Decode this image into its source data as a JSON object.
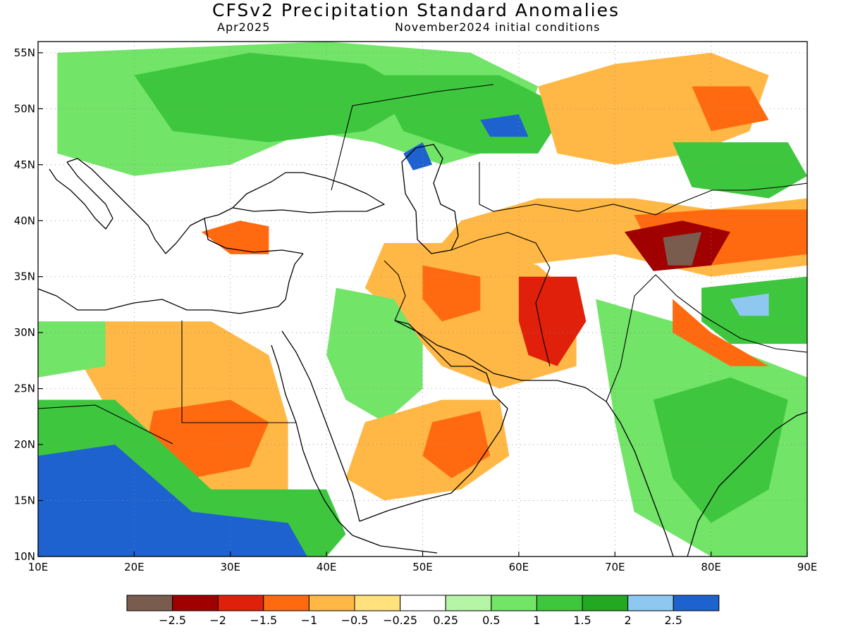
{
  "title": "CFSv2 Precipitation Standard Anomalies",
  "subtitle_left": "Apr2025",
  "subtitle_right": "November2024 initial conditions",
  "map": {
    "lon_range": [
      10,
      90
    ],
    "lat_range": [
      10,
      56
    ],
    "lon_ticks": [
      {
        "value": 10,
        "label": "10E"
      },
      {
        "value": 20,
        "label": "20E"
      },
      {
        "value": 30,
        "label": "30E"
      },
      {
        "value": 40,
        "label": "40E"
      },
      {
        "value": 50,
        "label": "50E"
      },
      {
        "value": 60,
        "label": "60E"
      },
      {
        "value": 70,
        "label": "70E"
      },
      {
        "value": 80,
        "label": "80E"
      },
      {
        "value": 90,
        "label": "90E"
      }
    ],
    "lat_ticks": [
      {
        "value": 10,
        "label": "10N"
      },
      {
        "value": 15,
        "label": "15N"
      },
      {
        "value": 20,
        "label": "20N"
      },
      {
        "value": 25,
        "label": "25N"
      },
      {
        "value": 30,
        "label": "30N"
      },
      {
        "value": 35,
        "label": "35N"
      },
      {
        "value": 40,
        "label": "40N"
      },
      {
        "value": 45,
        "label": "45N"
      },
      {
        "value": 50,
        "label": "50N"
      },
      {
        "value": 55,
        "label": "55N"
      }
    ]
  },
  "colorbar": {
    "colors": [
      "#7a5c4f",
      "#a00000",
      "#e0200a",
      "#ff6a10",
      "#ffb845",
      "#ffe27c",
      "#ffffff",
      "#b6f5a6",
      "#72e468",
      "#3ec73e",
      "#22a822",
      "#8ec8f0",
      "#1e62d0"
    ],
    "labels": [
      "−2.5",
      "−2",
      "−1.5",
      "−1",
      "−0.5",
      "−0.25",
      "0.25",
      "0.5",
      "1",
      "1.5",
      "2",
      "2.5"
    ]
  },
  "anomaly_regions": [
    {
      "name": "europe-russia-wet",
      "level": 8,
      "points": [
        [
          12,
          55
        ],
        [
          40,
          56
        ],
        [
          55,
          55
        ],
        [
          62,
          52
        ],
        [
          60,
          47
        ],
        [
          52,
          45
        ],
        [
          45,
          47
        ],
        [
          38,
          48
        ],
        [
          30,
          45
        ],
        [
          20,
          44
        ],
        [
          12,
          46
        ]
      ]
    },
    {
      "name": "europe-russia-core",
      "level": 9,
      "points": [
        [
          20,
          53
        ],
        [
          32,
          55
        ],
        [
          44,
          54
        ],
        [
          50,
          51
        ],
        [
          44,
          48
        ],
        [
          34,
          47
        ],
        [
          24,
          48
        ]
      ]
    },
    {
      "name": "kazakhstan-wet",
      "level": 9,
      "points": [
        [
          45,
          53
        ],
        [
          58,
          53
        ],
        [
          65,
          50
        ],
        [
          62,
          46
        ],
        [
          55,
          46
        ],
        [
          48,
          48
        ]
      ]
    },
    {
      "name": "kazakhstan-blue",
      "level": 12,
      "points": [
        [
          56,
          49
        ],
        [
          60,
          49.5
        ],
        [
          61,
          47.5
        ],
        [
          57,
          47.5
        ]
      ]
    },
    {
      "name": "caspian-blue",
      "level": 12,
      "points": [
        [
          48,
          46
        ],
        [
          50,
          47
        ],
        [
          51,
          45
        ],
        [
          49,
          44.5
        ]
      ]
    },
    {
      "name": "siberia-dry",
      "level": 4,
      "points": [
        [
          62,
          52
        ],
        [
          70,
          54
        ],
        [
          80,
          55
        ],
        [
          86,
          53
        ],
        [
          84,
          48
        ],
        [
          78,
          46
        ],
        [
          70,
          45
        ],
        [
          64,
          46
        ]
      ]
    },
    {
      "name": "siberia-dry-core",
      "level": 3,
      "points": [
        [
          78,
          52
        ],
        [
          84,
          52
        ],
        [
          86,
          49
        ],
        [
          80,
          48
        ]
      ]
    },
    {
      "name": "mongolia-wet",
      "level": 9,
      "points": [
        [
          76,
          47
        ],
        [
          88,
          47
        ],
        [
          90,
          44
        ],
        [
          86,
          42
        ],
        [
          78,
          43
        ]
      ]
    },
    {
      "name": "central-asia-dry",
      "level": 4,
      "points": [
        [
          54,
          40
        ],
        [
          62,
          42
        ],
        [
          72,
          42
        ],
        [
          80,
          41
        ],
        [
          90,
          42
        ],
        [
          90,
          36
        ],
        [
          80,
          35
        ],
        [
          70,
          37
        ],
        [
          60,
          36
        ],
        [
          52,
          38
        ]
      ]
    },
    {
      "name": "tarim-dry",
      "level": 3,
      "points": [
        [
          72,
          40.5
        ],
        [
          80,
          41
        ],
        [
          90,
          41
        ],
        [
          90,
          37
        ],
        [
          80,
          36
        ],
        [
          74,
          37
        ]
      ]
    },
    {
      "name": "karakoram-dark",
      "level": 1,
      "points": [
        [
          71,
          39
        ],
        [
          77,
          40
        ],
        [
          82,
          39
        ],
        [
          80,
          36
        ],
        [
          74,
          35.5
        ]
      ]
    },
    {
      "name": "karakoram-core",
      "level": 0,
      "points": [
        [
          75,
          38.5
        ],
        [
          79,
          39
        ],
        [
          78,
          36
        ],
        [
          75.5,
          36
        ]
      ]
    },
    {
      "name": "iran-dry",
      "level": 4,
      "points": [
        [
          46,
          38
        ],
        [
          54,
          38
        ],
        [
          62,
          36
        ],
        [
          66,
          33
        ],
        [
          66,
          27
        ],
        [
          58,
          25
        ],
        [
          52,
          27
        ],
        [
          48,
          31
        ],
        [
          44,
          34
        ]
      ]
    },
    {
      "name": "iran-dry-core",
      "level": 3,
      "points": [
        [
          50,
          36
        ],
        [
          56,
          35
        ],
        [
          56,
          32
        ],
        [
          52,
          31
        ],
        [
          50,
          33
        ]
      ]
    },
    {
      "name": "afghan-dry-core",
      "level": 2,
      "points": [
        [
          60,
          35
        ],
        [
          66,
          35
        ],
        [
          67,
          31
        ],
        [
          64,
          27
        ],
        [
          61,
          28
        ],
        [
          60,
          31
        ]
      ]
    },
    {
      "name": "gulf-wet",
      "level": 8,
      "points": [
        [
          41,
          34
        ],
        [
          47,
          33
        ],
        [
          50,
          29
        ],
        [
          50,
          25
        ],
        [
          46,
          22
        ],
        [
          42,
          24
        ],
        [
          40,
          28
        ]
      ]
    },
    {
      "name": "arabia-dry",
      "level": 4,
      "points": [
        [
          44,
          22
        ],
        [
          52,
          24
        ],
        [
          58,
          24
        ],
        [
          59,
          19
        ],
        [
          54,
          16
        ],
        [
          46,
          15
        ],
        [
          42,
          17
        ]
      ]
    },
    {
      "name": "oman-dry-core",
      "level": 3,
      "points": [
        [
          51,
          22
        ],
        [
          56,
          23
        ],
        [
          57,
          19
        ],
        [
          53,
          17
        ],
        [
          50,
          19
        ]
      ]
    },
    {
      "name": "india-wet",
      "level": 8,
      "points": [
        [
          68,
          33
        ],
        [
          76,
          31
        ],
        [
          84,
          28
        ],
        [
          90,
          26
        ],
        [
          90,
          10
        ],
        [
          80,
          10
        ],
        [
          72,
          14
        ],
        [
          70,
          22
        ]
      ]
    },
    {
      "name": "india-core",
      "level": 9,
      "points": [
        [
          74,
          24
        ],
        [
          82,
          26
        ],
        [
          88,
          24
        ],
        [
          86,
          16
        ],
        [
          80,
          13
        ],
        [
          76,
          17
        ]
      ]
    },
    {
      "name": "tibet-wet",
      "level": 9,
      "points": [
        [
          79,
          34
        ],
        [
          90,
          35
        ],
        [
          90,
          29
        ],
        [
          82,
          29
        ],
        [
          79,
          31
        ]
      ]
    },
    {
      "name": "tibet-blue",
      "level": 11,
      "points": [
        [
          82,
          33
        ],
        [
          86,
          33.5
        ],
        [
          86,
          31.5
        ],
        [
          83,
          31.5
        ]
      ]
    },
    {
      "name": "himalaya-dry",
      "level": 3,
      "points": [
        [
          76,
          33
        ],
        [
          80,
          30
        ],
        [
          86,
          27
        ],
        [
          82,
          27
        ],
        [
          76,
          30
        ]
      ]
    },
    {
      "name": "africa-dry",
      "level": 4,
      "points": [
        [
          17,
          31
        ],
        [
          28,
          31
        ],
        [
          34,
          28
        ],
        [
          36,
          22
        ],
        [
          36,
          16
        ],
        [
          30,
          15
        ],
        [
          24,
          16
        ],
        [
          18,
          22
        ],
        [
          14,
          28
        ]
      ]
    },
    {
      "name": "sudan-dry-core",
      "level": 3,
      "points": [
        [
          22,
          23
        ],
        [
          30,
          24
        ],
        [
          34,
          22
        ],
        [
          32,
          18
        ],
        [
          26,
          17
        ],
        [
          21,
          19
        ]
      ]
    },
    {
      "name": "sahel-wet",
      "level": 9,
      "points": [
        [
          10,
          24
        ],
        [
          18,
          24
        ],
        [
          28,
          16
        ],
        [
          40,
          16
        ],
        [
          42,
          12
        ],
        [
          40,
          10
        ],
        [
          10,
          10
        ]
      ]
    },
    {
      "name": "sahel-blue",
      "level": 12,
      "points": [
        [
          10,
          19
        ],
        [
          18,
          20
        ],
        [
          26,
          14
        ],
        [
          36,
          13
        ],
        [
          38,
          10
        ],
        [
          10,
          10
        ]
      ]
    },
    {
      "name": "turkey-dry",
      "level": 3,
      "points": [
        [
          27,
          39
        ],
        [
          31,
          40
        ],
        [
          34,
          39.5
        ],
        [
          34,
          37
        ],
        [
          30,
          37
        ]
      ]
    },
    {
      "name": "libya-wet",
      "level": 8,
      "points": [
        [
          10,
          31
        ],
        [
          17,
          31
        ],
        [
          17,
          27
        ],
        [
          10,
          26
        ]
      ]
    }
  ]
}
